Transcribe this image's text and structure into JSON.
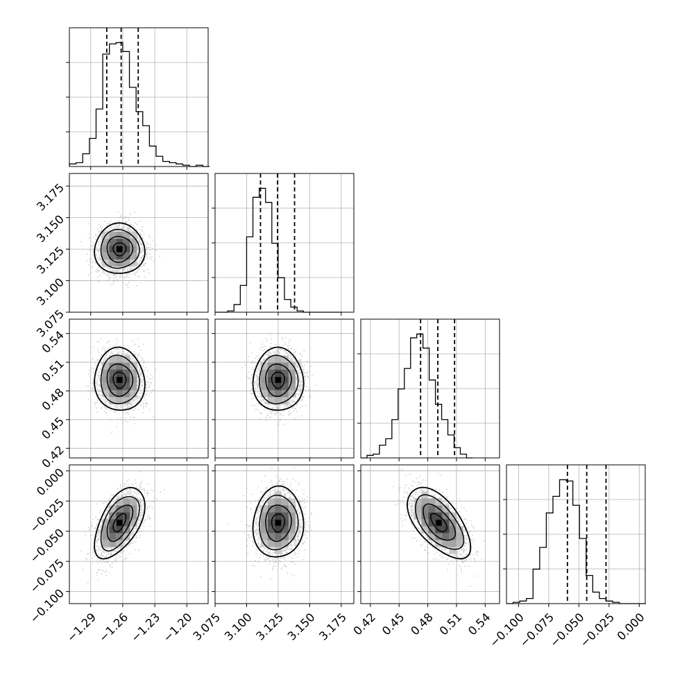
{
  "chart_data": {
    "type": "corner",
    "parameters": 4,
    "grid": true,
    "colors": {
      "line": "#000000",
      "grid": "#b0b0b0",
      "points": "#9a9a9a"
    },
    "ranges": [
      [
        -1.31,
        -1.18
      ],
      [
        3.075,
        3.185
      ],
      [
        0.41,
        0.555
      ],
      [
        -0.11,
        0.005
      ]
    ],
    "ticks": [
      [
        -1.29,
        -1.26,
        -1.23,
        -1.2
      ],
      [
        3.075,
        3.1,
        3.125,
        3.15,
        3.175
      ],
      [
        0.42,
        0.45,
        0.48,
        0.51,
        0.54
      ],
      [
        -0.1,
        -0.075,
        -0.05,
        -0.025,
        0.0
      ]
    ],
    "tick_labels": [
      [
        "−1.29",
        "−1.26",
        "−1.23",
        "−1.20"
      ],
      [
        "3.075",
        "3.100",
        "3.125",
        "3.150",
        "3.175"
      ],
      [
        "0.42",
        "0.45",
        "0.48",
        "0.51",
        "0.54"
      ],
      [
        "−0.100",
        "−0.075",
        "−0.050",
        "−0.025",
        "0.000"
      ]
    ],
    "quantiles": [
      [
        -1.275,
        -1.2615,
        -1.2455
      ],
      [
        3.111,
        3.1245,
        3.138
      ],
      [
        0.4725,
        0.4905,
        0.508
      ],
      [
        -0.0595,
        -0.0435,
        -0.0275
      ]
    ],
    "histograms": [
      {
        "edges_start": -1.31,
        "bin_width": 0.00625,
        "counts": [
          2,
          3,
          10,
          22,
          45,
          88,
          96,
          97,
          90,
          62,
          43,
          32,
          16,
          8,
          4,
          3,
          2,
          1,
          0,
          1,
          0
        ]
      },
      {
        "edges_start": 3.075,
        "bin_width": 0.005,
        "counts": [
          0,
          0,
          1,
          6,
          21,
          59,
          90,
          97,
          86,
          54,
          27,
          10,
          4,
          1,
          0,
          0,
          0,
          0,
          0,
          0
        ]
      },
      {
        "edges_start": 0.41,
        "bin_width": 0.0065,
        "counts": [
          0,
          2,
          3,
          10,
          15,
          30,
          54,
          70,
          94,
          97,
          86,
          61,
          42,
          30,
          18,
          8,
          3,
          0
        ]
      },
      {
        "edges_start": -0.11,
        "bin_width": 0.0055,
        "counts": [
          0,
          1,
          2,
          4,
          27,
          44,
          71,
          84,
          97,
          96,
          77,
          51,
          22,
          9,
          4,
          2,
          1,
          0,
          0,
          0,
          0
        ]
      }
    ],
    "scatter_2d": [
      {
        "x": 1,
        "y": 0,
        "center": [
          -1.263,
          3.125
        ],
        "spread": [
          0.01,
          0.0085
        ],
        "corr": 0.0
      },
      {
        "x": 2,
        "y": 0,
        "center": [
          -1.263,
          0.4915
        ],
        "spread": [
          0.01,
          0.014
        ],
        "corr": -0.05
      },
      {
        "x": 2,
        "y": 1,
        "center": [
          3.125,
          0.4915
        ],
        "spread": [
          0.0085,
          0.014
        ],
        "corr": 0.0
      },
      {
        "x": 3,
        "y": 0,
        "center": [
          -1.263,
          -0.043
        ],
        "spread": [
          0.01,
          0.0125
        ],
        "corr": 0.55
      },
      {
        "x": 3,
        "y": 1,
        "center": [
          3.125,
          -0.043
        ],
        "spread": [
          0.0085,
          0.0125
        ],
        "corr": 0.05
      },
      {
        "x": 3,
        "y": 2,
        "center": [
          0.4915,
          -0.043
        ],
        "spread": [
          0.014,
          0.0125
        ],
        "corr": -0.6
      }
    ]
  }
}
